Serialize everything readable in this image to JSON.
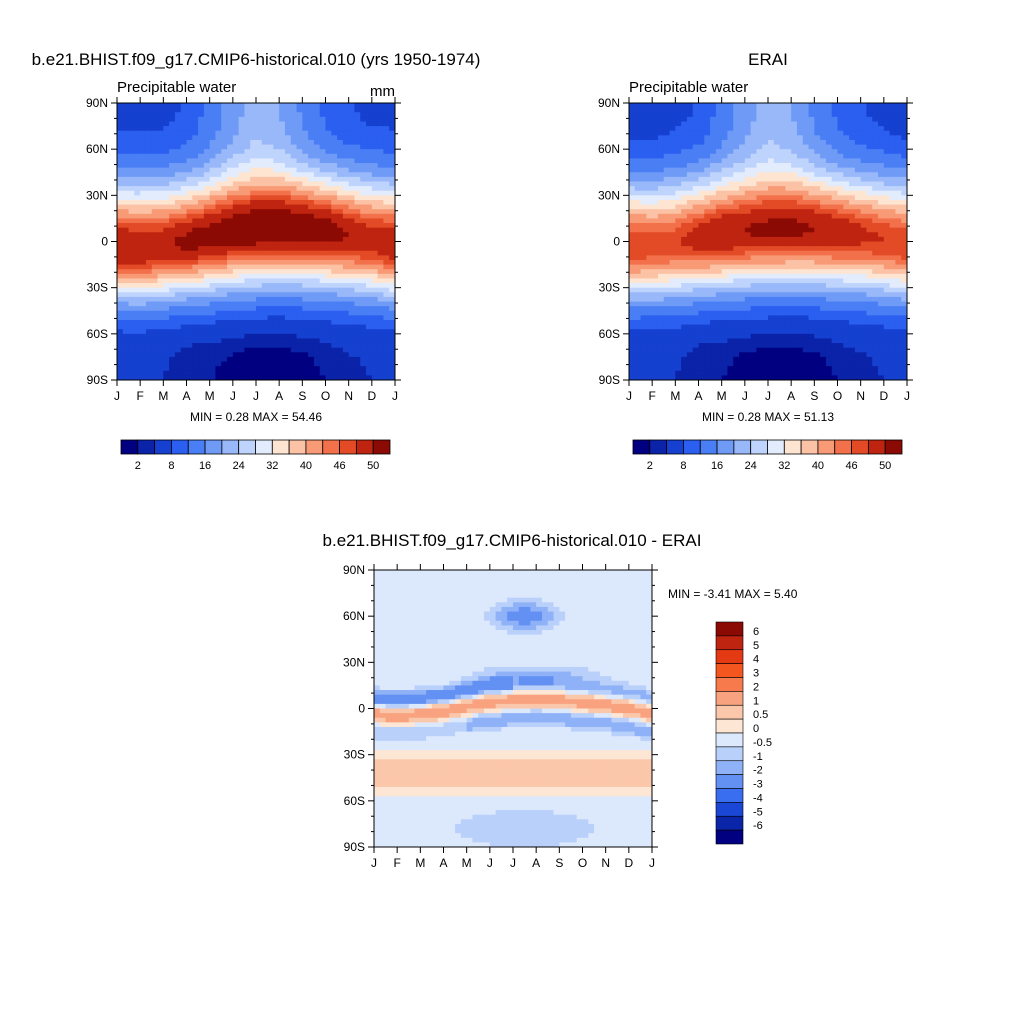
{
  "panels": {
    "top_left": {
      "title": "b.e21.BHIST.f09_g17.CMIP6-historical.010 (yrs 1950-1974)",
      "subtitle": "Precipitable water",
      "units": "mm",
      "stats": "MIN =   0.28 MAX =  54.46"
    },
    "top_right": {
      "title": "ERAI",
      "subtitle": "Precipitable water",
      "stats": "MIN =   0.28 MAX =  51.13"
    },
    "bottom": {
      "title": "b.e21.BHIST.f09_g17.CMIP6-historical.010 - ERAI",
      "stats": "MIN =  -3.41 MAX =   5.40"
    }
  },
  "axes": {
    "y_ticks": [
      "90N",
      "60N",
      "30N",
      "0",
      "30S",
      "60S",
      "90S"
    ],
    "x_ticks": [
      "J",
      "F",
      "M",
      "A",
      "M",
      "J",
      "J",
      "A",
      "S",
      "O",
      "N",
      "D",
      "J"
    ]
  },
  "colorbars": {
    "levels": {
      "labels": [
        "2",
        "8",
        "16",
        "24",
        "32",
        "40",
        "46",
        "50"
      ],
      "colors": [
        "#000080",
        "#0a23a8",
        "#1540d0",
        "#2b5ff0",
        "#4a7ef5",
        "#6f9bf7",
        "#98b8fa",
        "#bfd4fc",
        "#e2ecfd",
        "#fde5d2",
        "#fbc2a5",
        "#f89a75",
        "#f2704a",
        "#e34a26",
        "#bf2410",
        "#8c0a04"
      ]
    },
    "difference": {
      "labels": [
        "6",
        "5",
        "4",
        "3",
        "2",
        "1",
        "0.5",
        "0",
        "-0.5",
        "-1",
        "-2",
        "-3",
        "-4",
        "-5",
        "-6"
      ],
      "colors": [
        "#8c0a04",
        "#bf2410",
        "#e33a14",
        "#f4561f",
        "#f77a4c",
        "#f9a27f",
        "#fbc7aa",
        "#fde6d4",
        "#dce8fc",
        "#b9d0fa",
        "#8fb1f7",
        "#6390f3",
        "#3a6ef0",
        "#1a47d6",
        "#0a25a8",
        "#000080"
      ]
    }
  },
  "chart_data": [
    {
      "type": "heatmap",
      "title": "b.e21.BHIST.f09_g17.CMIP6-historical.010 (yrs 1950-1974)",
      "subtitle": "Precipitable water",
      "units": "mm",
      "x": [
        "J",
        "F",
        "M",
        "A",
        "M",
        "J",
        "J",
        "A",
        "S",
        "O",
        "N",
        "D",
        "J"
      ],
      "y_range": [
        -90,
        90
      ],
      "itcz_lat": [
        -4,
        -5,
        -3,
        0,
        3,
        7,
        9,
        10,
        9,
        7,
        4,
        1,
        -3
      ],
      "itcz_peak": [
        50,
        50,
        49,
        51,
        52,
        53,
        54,
        54,
        53,
        52,
        50,
        48,
        50
      ],
      "nh_pole": [
        4,
        4,
        4,
        5,
        9,
        14,
        18,
        16,
        11,
        7,
        5,
        4,
        4
      ],
      "sh_pole": [
        2,
        2,
        2,
        1,
        1,
        0.5,
        0.3,
        0.3,
        0.5,
        1,
        1.5,
        2,
        2
      ],
      "min": 0.28,
      "max": 54.46
    },
    {
      "type": "heatmap",
      "title": "ERAI",
      "subtitle": "Precipitable water",
      "x": [
        "J",
        "F",
        "M",
        "A",
        "M",
        "J",
        "J",
        "A",
        "S",
        "O",
        "N",
        "D",
        "J"
      ],
      "y_range": [
        -90,
        90
      ],
      "itcz_lat": [
        -3,
        -3,
        -1,
        2,
        5,
        7,
        8,
        9,
        8,
        6,
        4,
        1,
        -2
      ],
      "itcz_peak": [
        46,
        45,
        45,
        48,
        50,
        50,
        51,
        51,
        50,
        49,
        47,
        46,
        46
      ],
      "nh_pole": [
        3,
        3,
        4,
        5,
        9,
        14,
        18,
        16,
        11,
        7,
        5,
        4,
        3
      ],
      "sh_pole": [
        2,
        2,
        2,
        1,
        1,
        0.5,
        0.3,
        0.3,
        0.5,
        1,
        1.5,
        2,
        2
      ],
      "min": 0.28,
      "max": 51.13
    },
    {
      "type": "heatmap",
      "title": "b.e21.BHIST.f09_g17.CMIP6-historical.010 - ERAI",
      "x": [
        "J",
        "F",
        "M",
        "A",
        "M",
        "J",
        "J",
        "A",
        "S",
        "O",
        "N",
        "D",
        "J"
      ],
      "y_range": [
        -90,
        90
      ],
      "min": -3.41,
      "max": 5.4
    }
  ]
}
